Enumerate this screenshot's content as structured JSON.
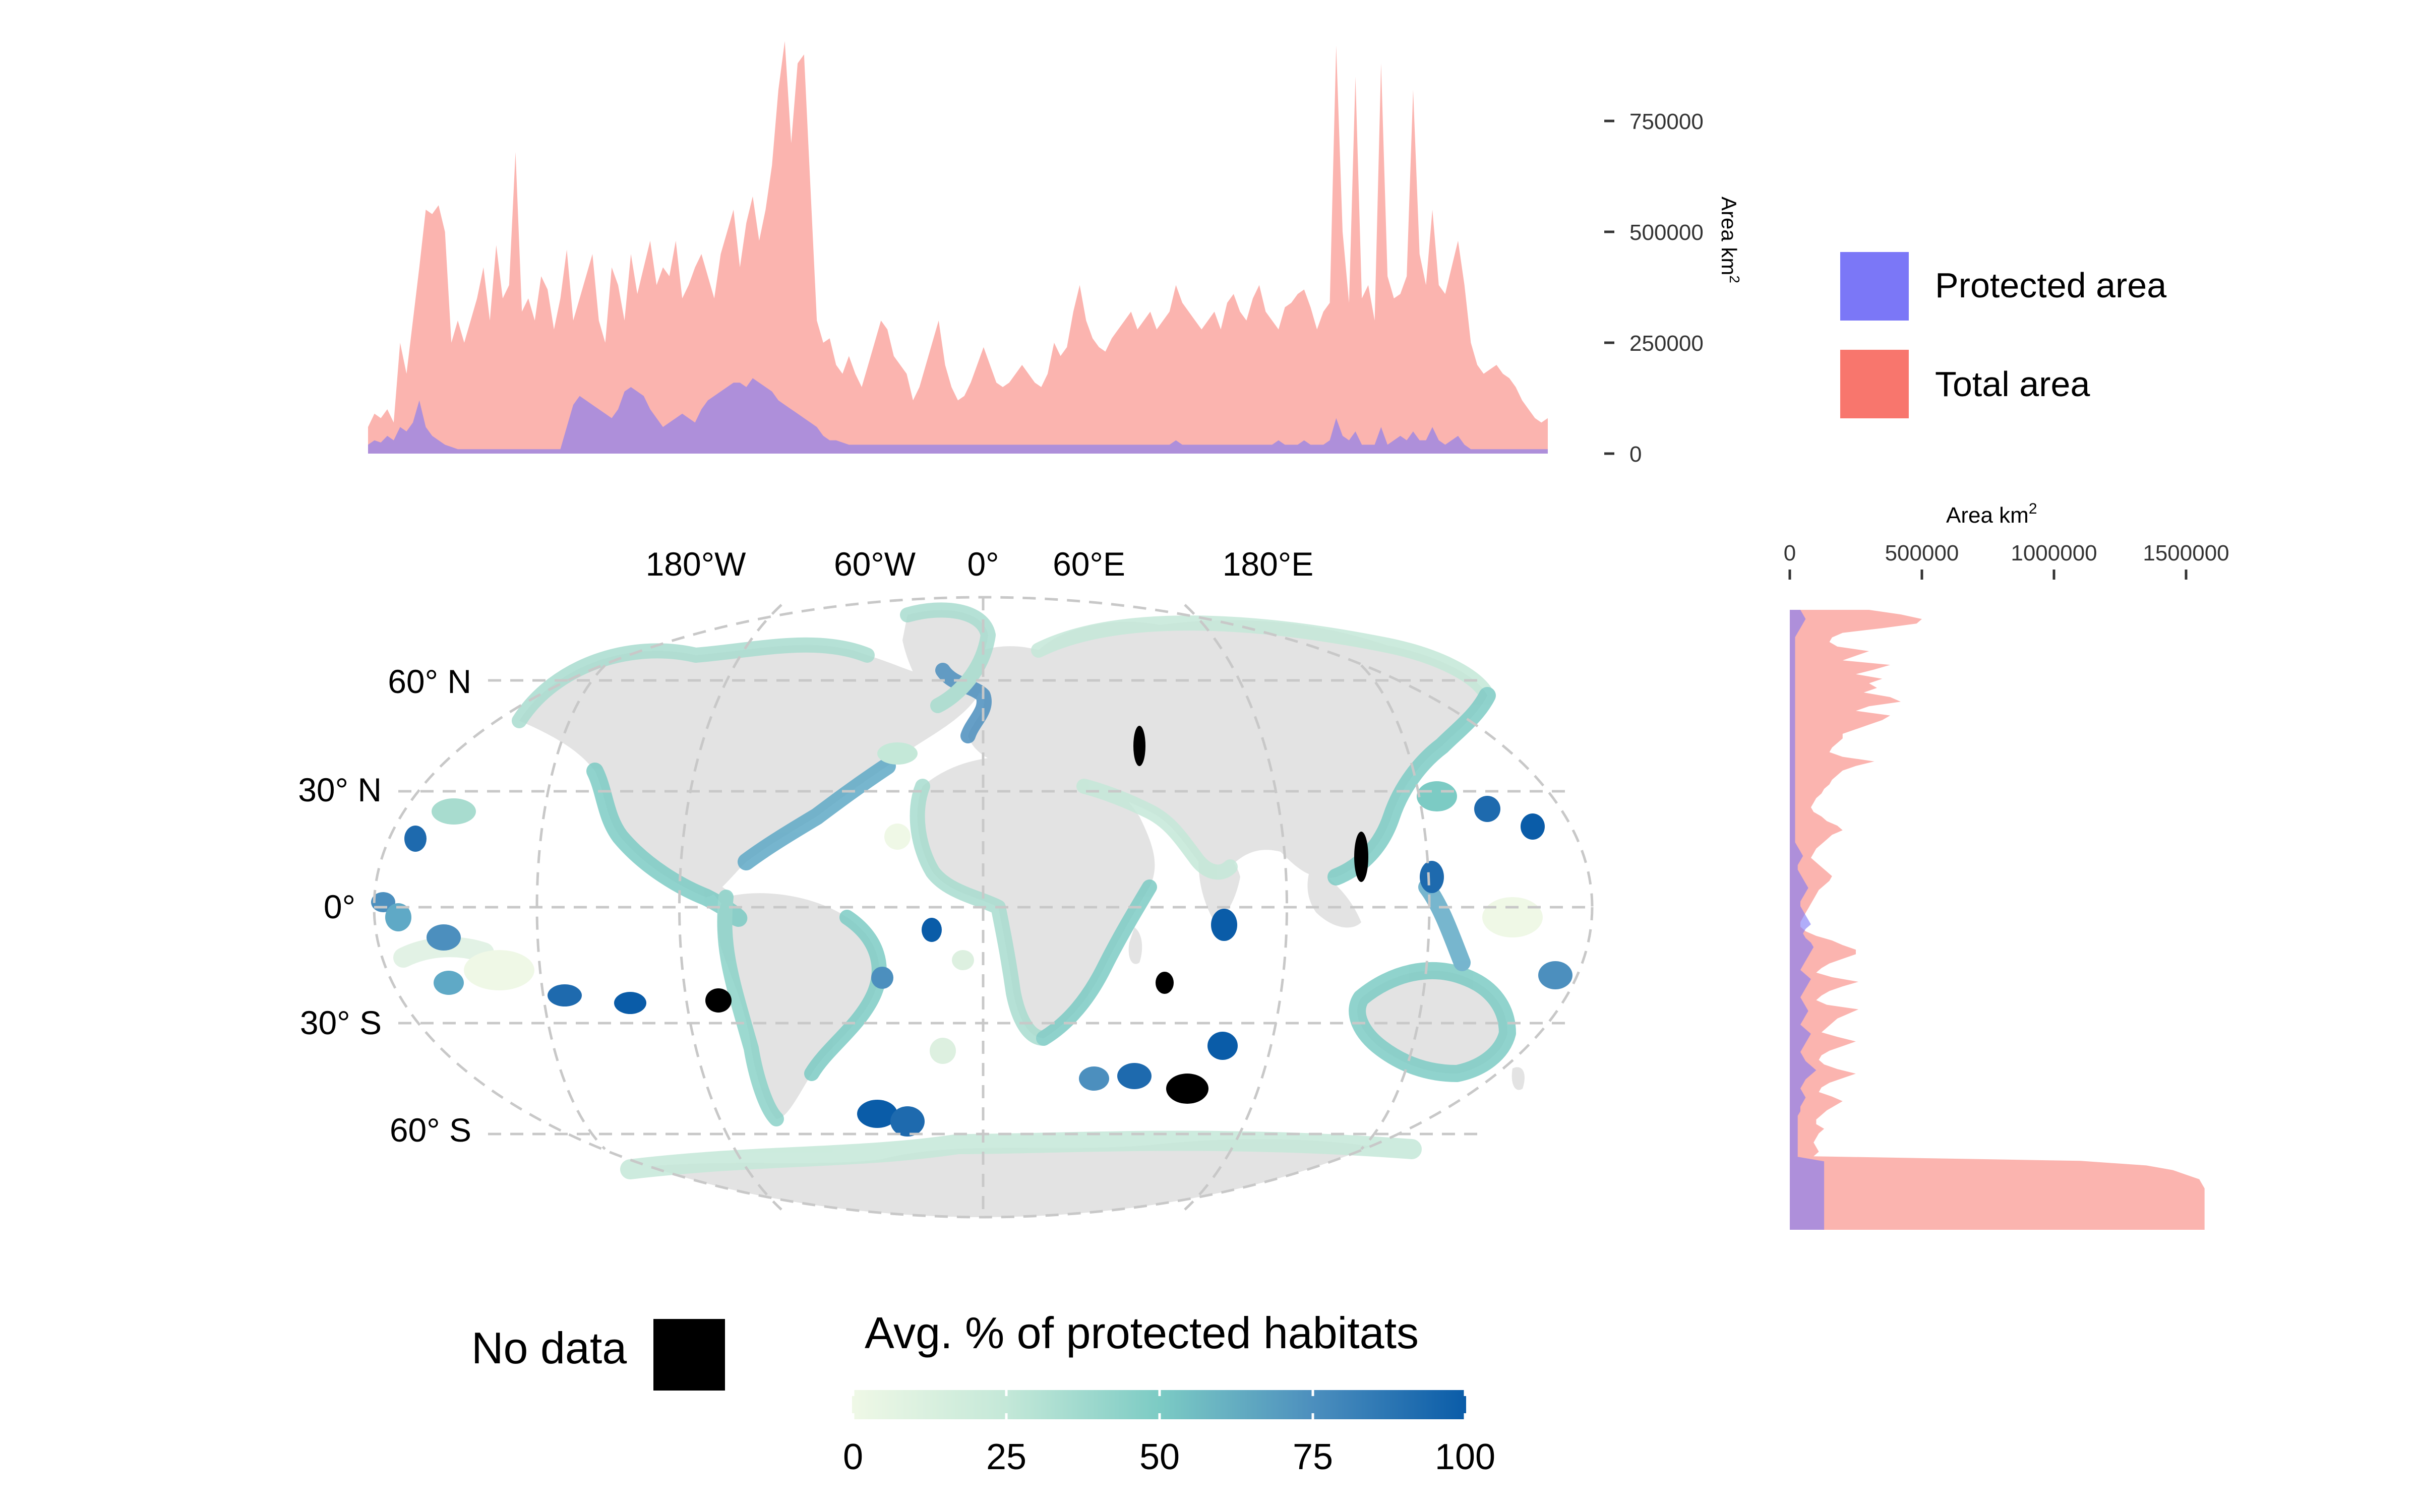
{
  "colors": {
    "total_area": "#F8766D",
    "protected_area": "#7B77F7",
    "land": "#E3E3E3",
    "grid": "#C8C8C8",
    "no_data": "#000000",
    "gradient": [
      "#EFF8E6",
      "#C4E8D8",
      "#7CCBC4",
      "#4C8FBE",
      "#0A5CA8"
    ]
  },
  "top_chart": {
    "ylabel_main": "Area km",
    "ylabel_sup": "2",
    "yticks": [
      "750000",
      "500000",
      "250000",
      "0"
    ]
  },
  "right_chart": {
    "xlabel_main": "Area km",
    "xlabel_sup": "2",
    "xticks": [
      "0",
      "500000",
      "1000000",
      "1500000"
    ]
  },
  "map": {
    "lon_labels": [
      "180°W",
      "60°W",
      "0°",
      "60°E",
      "180°E"
    ],
    "lat_labels": [
      "60° N",
      "30° N",
      "0°",
      "30° S",
      "60° S"
    ]
  },
  "legend_area": {
    "items": [
      {
        "label": "Protected area",
        "color": "#7B77F7"
      },
      {
        "label": "Total area",
        "color": "#F8766D"
      }
    ]
  },
  "legend_habitat": {
    "no_data_label": "No data",
    "title": "Avg. % of protected habitats",
    "ticks": [
      "0",
      "25",
      "50",
      "75",
      "100"
    ]
  },
  "chart_data": [
    {
      "type": "area",
      "orientation": "horizontal",
      "x_description": "longitude bins",
      "ylabel": "Area km2",
      "ylim": [
        0,
        930000
      ],
      "series": [
        {
          "name": "Total area",
          "values": [
            60000,
            90000,
            80000,
            100000,
            70000,
            250000,
            180000,
            300000,
            420000,
            550000,
            540000,
            560000,
            500000,
            250000,
            300000,
            250000,
            300000,
            350000,
            420000,
            300000,
            470000,
            350000,
            380000,
            680000,
            320000,
            350000,
            300000,
            400000,
            370000,
            280000,
            350000,
            460000,
            300000,
            350000,
            400000,
            450000,
            300000,
            250000,
            420000,
            380000,
            300000,
            450000,
            360000,
            420000,
            480000,
            380000,
            420000,
            400000,
            480000,
            350000,
            380000,
            420000,
            450000,
            400000,
            350000,
            450000,
            500000,
            550000,
            420000,
            520000,
            580000,
            480000,
            550000,
            650000,
            820000,
            930000,
            700000,
            880000,
            900000,
            600000,
            300000,
            250000,
            260000,
            200000,
            180000,
            220000,
            180000,
            150000,
            200000,
            250000,
            300000,
            280000,
            220000,
            200000,
            180000,
            120000,
            150000,
            200000,
            250000,
            300000,
            200000,
            150000,
            120000,
            130000,
            160000,
            200000,
            240000,
            200000,
            160000,
            150000,
            160000,
            180000,
            200000,
            180000,
            160000,
            150000,
            180000,
            250000,
            220000,
            240000,
            320000,
            380000,
            300000,
            260000,
            240000,
            230000,
            260000,
            280000,
            300000,
            320000,
            280000,
            300000,
            320000,
            280000,
            300000,
            320000,
            380000,
            340000,
            320000,
            300000,
            280000,
            300000,
            320000,
            280000,
            340000,
            360000,
            320000,
            300000,
            350000,
            380000,
            320000,
            300000,
            280000,
            330000,
            340000,
            360000,
            370000,
            330000,
            280000,
            320000,
            340000,
            920000,
            500000,
            340000,
            850000,
            350000,
            380000,
            300000,
            880000,
            400000,
            350000,
            360000,
            400000,
            820000,
            450000,
            380000,
            550000,
            380000,
            360000,
            420000,
            480000,
            380000,
            250000,
            200000,
            180000,
            190000,
            200000,
            180000,
            170000,
            150000,
            120000,
            100000,
            80000,
            70000,
            80000
          ]
        },
        {
          "name": "Protected area",
          "values": [
            20000,
            30000,
            25000,
            40000,
            30000,
            60000,
            50000,
            70000,
            120000,
            60000,
            40000,
            30000,
            20000,
            15000,
            10000,
            10000,
            10000,
            10000,
            10000,
            10000,
            10000,
            10000,
            10000,
            10000,
            10000,
            10000,
            10000,
            10000,
            10000,
            10000,
            10000,
            60000,
            110000,
            130000,
            120000,
            110000,
            100000,
            90000,
            80000,
            100000,
            140000,
            150000,
            140000,
            130000,
            100000,
            80000,
            60000,
            70000,
            80000,
            90000,
            80000,
            70000,
            100000,
            120000,
            130000,
            140000,
            150000,
            160000,
            160000,
            150000,
            170000,
            160000,
            150000,
            140000,
            120000,
            110000,
            100000,
            90000,
            80000,
            70000,
            60000,
            40000,
            30000,
            30000,
            25000,
            20000,
            20000,
            20000,
            20000,
            20000,
            20000,
            20000,
            20000,
            20000,
            20000,
            20000,
            20000,
            20000,
            20000,
            20000,
            20000,
            20000,
            20000,
            20000,
            20000,
            20000,
            20000,
            20000,
            20000,
            20000,
            20000,
            20000,
            20000,
            20000,
            20000,
            20000,
            20000,
            20000,
            20000,
            20000,
            20000,
            20000,
            20000,
            20000,
            20000,
            20000,
            20000,
            20000,
            20000,
            20000,
            20000,
            20000,
            20000,
            20000,
            20000,
            20000,
            30000,
            20000,
            20000,
            20000,
            20000,
            20000,
            20000,
            20000,
            20000,
            20000,
            20000,
            20000,
            20000,
            20000,
            20000,
            20000,
            30000,
            20000,
            20000,
            20000,
            30000,
            20000,
            20000,
            20000,
            30000,
            80000,
            40000,
            30000,
            50000,
            20000,
            20000,
            20000,
            60000,
            20000,
            30000,
            40000,
            30000,
            50000,
            30000,
            30000,
            60000,
            30000,
            20000,
            30000,
            40000,
            20000,
            10000,
            10000,
            10000,
            10000,
            10000,
            10000,
            10000,
            10000,
            10000,
            10000,
            10000,
            10000,
            10000
          ]
        }
      ]
    },
    {
      "type": "area",
      "orientation": "vertical",
      "y_description": "latitude bins, north to south",
      "xlabel": "Area km2",
      "xlim": [
        0,
        1700000
      ],
      "series": [
        {
          "name": "Total area",
          "values": [
            300000,
            420000,
            500000,
            480000,
            350000,
            200000,
            160000,
            150000,
            180000,
            300000,
            250000,
            200000,
            380000,
            320000,
            250000,
            350000,
            300000,
            330000,
            280000,
            380000,
            420000,
            300000,
            250000,
            380000,
            350000,
            300000,
            250000,
            200000,
            200000,
            180000,
            160000,
            150000,
            200000,
            320000,
            250000,
            200000,
            180000,
            160000,
            150000,
            130000,
            120000,
            100000,
            90000,
            80000,
            90000,
            120000,
            140000,
            180000,
            200000,
            160000,
            140000,
            120000,
            100000,
            90000,
            80000,
            100000,
            120000,
            140000,
            160000,
            150000,
            130000,
            110000,
            100000,
            90000,
            80000,
            70000,
            60000,
            50000,
            40000,
            40000,
            60000,
            100000,
            160000,
            200000,
            250000,
            250000,
            200000,
            150000,
            120000,
            100000,
            160000,
            260000,
            200000,
            150000,
            120000,
            100000,
            140000,
            260000,
            220000,
            180000,
            160000,
            140000,
            120000,
            180000,
            250000,
            200000,
            150000,
            120000,
            110000,
            130000,
            180000,
            250000,
            200000,
            150000,
            120000,
            110000,
            160000,
            200000,
            170000,
            140000,
            120000,
            100000,
            100000,
            130000,
            110000,
            100000,
            90000,
            100000,
            110000,
            90000,
            1100000,
            1350000,
            1450000,
            1500000,
            1550000,
            1560000,
            1570000,
            1570000,
            1570000,
            1570000,
            1570000,
            1570000,
            1570000,
            1570000,
            1570000,
            1570000
          ]
        },
        {
          "name": "Protected area",
          "values": [
            40000,
            50000,
            60000,
            50000,
            40000,
            30000,
            20000,
            20000,
            20000,
            20000,
            20000,
            20000,
            20000,
            20000,
            20000,
            20000,
            20000,
            20000,
            20000,
            20000,
            20000,
            20000,
            20000,
            20000,
            20000,
            20000,
            20000,
            20000,
            20000,
            20000,
            20000,
            20000,
            20000,
            20000,
            20000,
            20000,
            20000,
            20000,
            20000,
            20000,
            20000,
            20000,
            20000,
            20000,
            20000,
            20000,
            20000,
            20000,
            20000,
            20000,
            20000,
            20000,
            30000,
            40000,
            50000,
            40000,
            30000,
            30000,
            40000,
            50000,
            60000,
            70000,
            60000,
            50000,
            40000,
            40000,
            50000,
            60000,
            70000,
            80000,
            60000,
            50000,
            60000,
            80000,
            90000,
            80000,
            70000,
            60000,
            50000,
            40000,
            60000,
            80000,
            70000,
            60000,
            50000,
            40000,
            50000,
            60000,
            70000,
            60000,
            50000,
            40000,
            60000,
            80000,
            70000,
            60000,
            50000,
            40000,
            50000,
            60000,
            80000,
            100000,
            80000,
            60000,
            50000,
            40000,
            50000,
            60000,
            50000,
            40000,
            40000,
            30000,
            30000,
            30000,
            30000,
            30000,
            30000,
            30000,
            30000,
            30000,
            30000,
            130000,
            130000,
            130000,
            130000,
            130000,
            130000,
            130000,
            130000,
            130000,
            130000,
            130000,
            130000,
            130000,
            130000,
            130000,
            130000
          ]
        }
      ]
    }
  ]
}
